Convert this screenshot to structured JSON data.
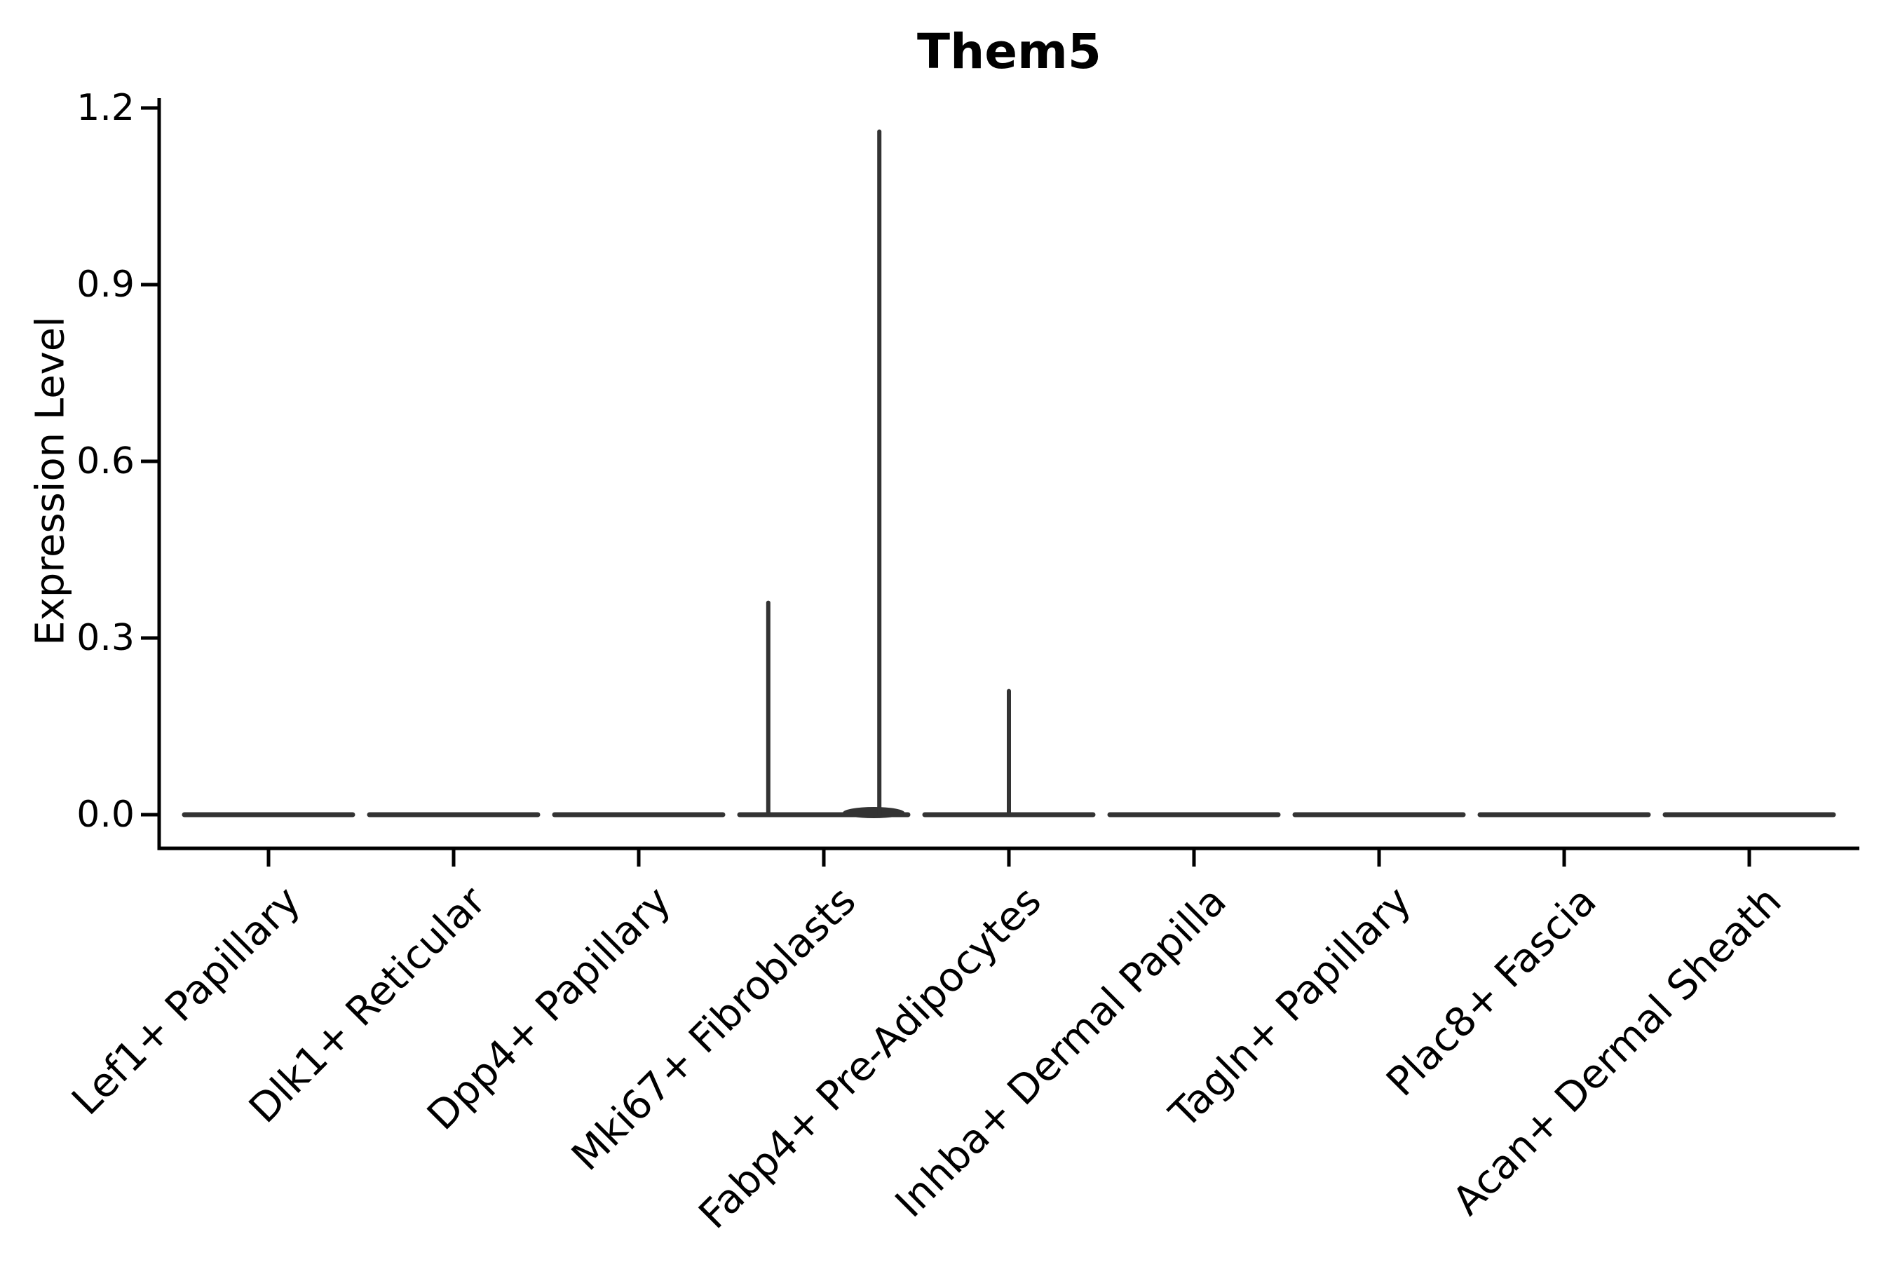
{
  "chart_data": {
    "type": "violin",
    "title": "Them5",
    "xlabel": "",
    "ylabel": "Expression Level",
    "ylim": [
      0.0,
      1.2
    ],
    "ytick_values": [
      0.0,
      0.3,
      0.6,
      0.9,
      1.2
    ],
    "ytick_labels": [
      "0.0",
      "0.3",
      "0.6",
      "0.9",
      "1.2"
    ],
    "grid": false,
    "legend": "none",
    "x_label_rotation_deg": 45,
    "categories": [
      "Lef1+ Papillary",
      "Dlk1+ Reticular",
      "Dpp4+ Papillary",
      "Mki67+ Fibroblasts",
      "Fabp4+ Pre-Adipocytes",
      "Inhba+ Dermal Papilla",
      "Tagln+ Papillary",
      "Plac8+ Fascia",
      "Acan+ Dermal Sheath"
    ],
    "violins": [
      {
        "category": "Lef1+ Papillary",
        "baseline_value": 0.0,
        "max_value": 0.0,
        "spikes": []
      },
      {
        "category": "Dlk1+ Reticular",
        "baseline_value": 0.0,
        "max_value": 0.0,
        "spikes": []
      },
      {
        "category": "Dpp4+ Papillary",
        "baseline_value": 0.0,
        "max_value": 0.0,
        "spikes": []
      },
      {
        "category": "Mki67+ Fibroblasts",
        "baseline_value": 0.0,
        "max_value": 1.16,
        "spikes": [
          {
            "offset_frac": -0.3,
            "peak_value": 0.36
          },
          {
            "offset_frac": 0.3,
            "peak_value": 1.16
          }
        ]
      },
      {
        "category": "Fabp4+ Pre-Adipocytes",
        "baseline_value": 0.0,
        "max_value": 0.21,
        "spikes": [
          {
            "offset_frac": 0.0,
            "peak_value": 0.21
          }
        ]
      },
      {
        "category": "Inhba+ Dermal Papilla",
        "baseline_value": 0.0,
        "max_value": 0.0,
        "spikes": []
      },
      {
        "category": "Tagln+ Papillary",
        "baseline_value": 0.0,
        "max_value": 0.0,
        "spikes": []
      },
      {
        "category": "Plac8+ Fascia",
        "baseline_value": 0.0,
        "max_value": 0.0,
        "spikes": []
      },
      {
        "category": "Acan+ Dermal Sheath",
        "baseline_value": 0.0,
        "max_value": 0.0,
        "spikes": []
      }
    ],
    "colors": {
      "violin_stroke": "#333333",
      "axis": "#000000",
      "text": "#000000",
      "background": "#ffffff"
    }
  }
}
